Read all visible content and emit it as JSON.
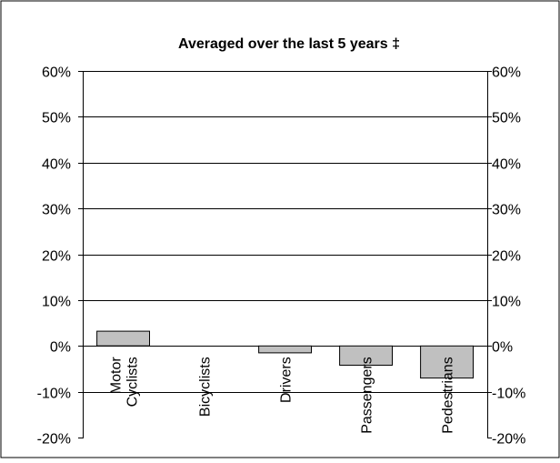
{
  "chart_data": {
    "type": "bar",
    "title": "Averaged over the last 5 years ‡",
    "xlabel": "",
    "ylabel": "",
    "categories": [
      "Motor Cyclists",
      "Bicyclists",
      "Drivers",
      "Passengers",
      "Pedestrians"
    ],
    "category_lines": [
      [
        "Motor",
        "Cyclists"
      ],
      [
        "Bicyclists"
      ],
      [
        "Drivers"
      ],
      [
        "Passengers"
      ],
      [
        "Pedestrians"
      ]
    ],
    "values": [
      3.2,
      0,
      -1.5,
      -4.2,
      -7.0
    ],
    "unit": "%",
    "ylim": [
      -20,
      60
    ],
    "yticks": [
      -20,
      -10,
      0,
      10,
      20,
      30,
      40,
      50,
      60
    ],
    "ytick_labels": [
      "-20%",
      "-10%",
      "0%",
      "10%",
      "20%",
      "30%",
      "40%",
      "50%",
      "60%"
    ],
    "dual_y_axis": true,
    "grid": true,
    "legend": "none",
    "colors": {
      "bar_fill": "#c0c0c0",
      "bar_stroke": "#000000",
      "grid": "#000000",
      "frame": "#000000",
      "text": "#000000",
      "background": "#ffffff"
    }
  }
}
